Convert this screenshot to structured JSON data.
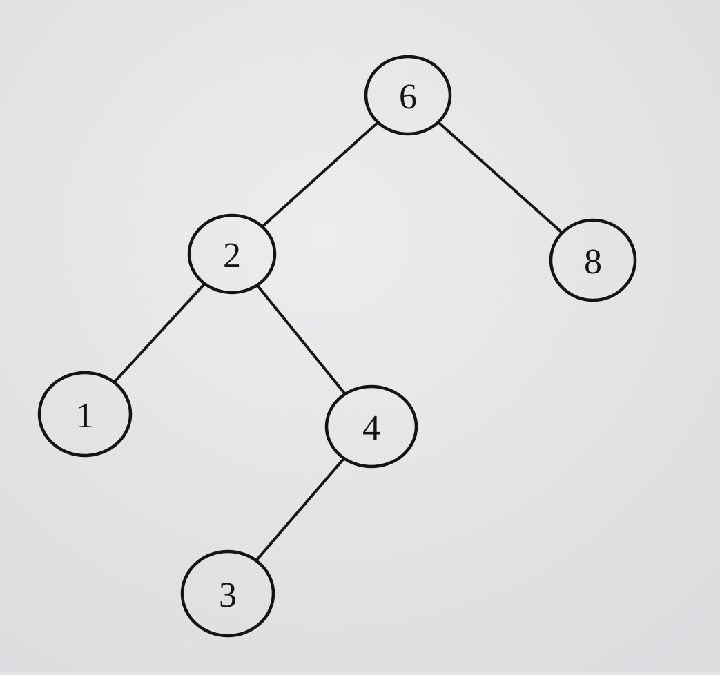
{
  "diagram": {
    "type": "binary-tree",
    "root": "6",
    "nodes": [
      {
        "id": "n6",
        "label": "6"
      },
      {
        "id": "n2",
        "label": "2"
      },
      {
        "id": "n8",
        "label": "8"
      },
      {
        "id": "n1",
        "label": "1"
      },
      {
        "id": "n4",
        "label": "4"
      },
      {
        "id": "n3",
        "label": "3"
      }
    ],
    "edges": [
      {
        "from": "n6",
        "to": "n2",
        "side": "left"
      },
      {
        "from": "n6",
        "to": "n8",
        "side": "right"
      },
      {
        "from": "n2",
        "to": "n1",
        "side": "left"
      },
      {
        "from": "n2",
        "to": "n4",
        "side": "right"
      },
      {
        "from": "n4",
        "to": "n3",
        "side": "left"
      }
    ]
  }
}
